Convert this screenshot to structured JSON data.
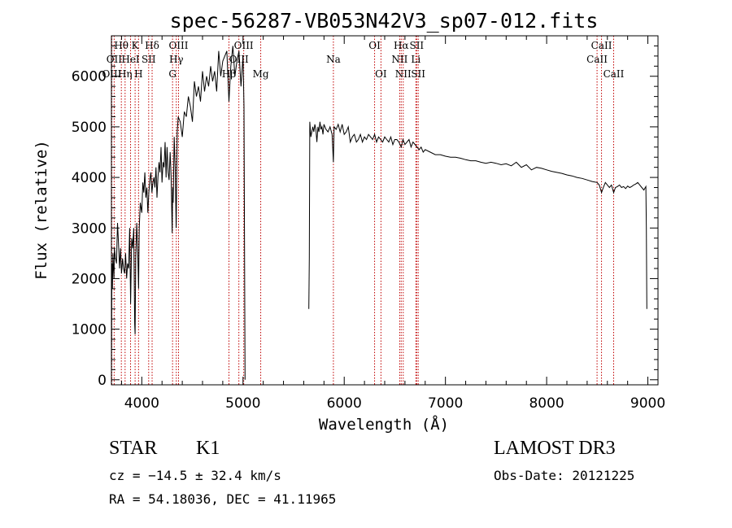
{
  "chart_data": {
    "type": "line",
    "title": "spec-56287-VB053N42V3_sp07-012.fits",
    "xlabel": "Wavelength (Å)",
    "ylabel": "Flux (relative)",
    "xlim": [
      3700,
      9100
    ],
    "ylim": [
      -100,
      6800
    ],
    "xticks": [
      4000,
      5000,
      6000,
      7000,
      8000,
      9000
    ],
    "yticks": [
      0,
      1000,
      2000,
      3000,
      4000,
      5000,
      6000
    ],
    "grid": false,
    "series": [
      {
        "segments": [
          {
            "x": [
              3700,
              3705,
              3710,
              3715,
              3720,
              3725,
              3730,
              3740,
              3750,
              3760,
              3770,
              3780,
              3790,
              3800,
              3810,
              3820,
              3830,
              3840,
              3850,
              3860,
              3870,
              3880,
              3890,
              3900,
              3910,
              3920,
              3930,
              3934,
              3940,
              3950,
              3960,
              3968,
              3975,
              3985,
              4000,
              4010,
              4020,
              4030,
              4040,
              4050,
              4060,
              4070,
              4080,
              4090,
              4100,
              4110,
              4120,
              4130,
              4140,
              4150,
              4160,
              4170,
              4180,
              4190,
              4200,
              4210,
              4220,
              4230,
              4240,
              4250,
              4260,
              4270,
              4280,
              4290,
              4300,
              4305,
              4310,
              4320,
              4330,
              4340,
              4350,
              4360,
              4380,
              4400,
              4420,
              4440,
              4460,
              4480,
              4500,
              4520,
              4540,
              4560,
              4580,
              4600,
              4620,
              4640,
              4660,
              4680,
              4700,
              4720,
              4740,
              4760,
              4780,
              4800,
              4820,
              4840,
              4861,
              4880,
              4900,
              4920,
              4940,
              4960,
              4980,
              5000,
              5010,
              5020
            ],
            "y": [
              0,
              2300,
              1800,
              2500,
              2200,
              2000,
              2600,
              2400,
              2300,
              3100,
              2700,
              2200,
              2600,
              2100,
              2400,
              2200,
              2100,
              2500,
              2000,
              2300,
              2200,
              3000,
              1500,
              2800,
              2600,
              3000,
              1100,
              900,
              2400,
              3100,
              2500,
              1800,
              3000,
              3500,
              3300,
              3900,
              3700,
              4100,
              3600,
              3800,
              3300,
              3700,
              3950,
              4100,
              3700,
              3900,
              4000,
              3800,
              4200,
              3600,
              4000,
              4300,
              4100,
              4600,
              3900,
              4300,
              4200,
              4700,
              4000,
              4600,
              4100,
              3950,
              4500,
              4000,
              2900,
              3800,
              3500,
              4800,
              4200,
              3000,
              4900,
              5200,
              5100,
              4800,
              5300,
              5200,
              5600,
              5400,
              5100,
              5900,
              5600,
              5800,
              5500,
              6100,
              5700,
              6000,
              5800,
              6200,
              5900,
              6100,
              5700,
              6500,
              6000,
              6300,
              6400,
              6500,
              5500,
              6200,
              6600,
              6000,
              6300,
              6500,
              5800,
              6400,
              5400,
              0
            ]
          },
          {
            "x": [
              5650,
              5655,
              5660,
              5670,
              5680,
              5690,
              5700,
              5710,
              5720,
              5730,
              5740,
              5750,
              5760,
              5770,
              5780,
              5790,
              5800,
              5820,
              5840,
              5860,
              5880,
              5893,
              5900,
              5920,
              5940,
              5960,
              5980,
              6000,
              6020,
              6040,
              6060,
              6080,
              6100,
              6120,
              6140,
              6160,
              6180,
              6200,
              6220,
              6240,
              6260,
              6280,
              6300,
              6320,
              6340,
              6360,
              6380,
              6400,
              6420,
              6440,
              6460,
              6480,
              6500,
              6520,
              6540,
              6563,
              6580,
              6600,
              6620,
              6640,
              6660,
              6680,
              6700,
              6720,
              6740,
              6760,
              6780,
              6800,
              6850,
              6900,
              6950,
              7000,
              7050,
              7100,
              7150,
              7200,
              7250,
              7300,
              7350,
              7400,
              7450,
              7500,
              7550,
              7600,
              7650,
              7700,
              7750,
              7800,
              7850,
              7900,
              7950,
              8000,
              8050,
              8100,
              8150,
              8200,
              8250,
              8300,
              8350,
              8400,
              8450,
              8498,
              8520,
              8542,
              8560,
              8580,
              8600,
              8620,
              8640,
              8662,
              8680,
              8700,
              8720,
              8740,
              8760,
              8780,
              8800,
              8820,
              8840,
              8860,
              8880,
              8900,
              8920,
              8940,
              8960,
              8980,
              8985,
              8990
            ],
            "y": [
              1400,
              2400,
              5100,
              4800,
              4900,
              5000,
              4900,
              5050,
              4950,
              4700,
              5000,
              4900,
              5100,
              4950,
              5000,
              4850,
              5050,
              4950,
              4900,
              5000,
              4850,
              4300,
              5000,
              4950,
              5050,
              4900,
              5050,
              4850,
              4900,
              5000,
              4700,
              4800,
              4850,
              4700,
              4750,
              4850,
              4700,
              4800,
              4750,
              4850,
              4800,
              4750,
              4850,
              4700,
              4800,
              4750,
              4700,
              4800,
              4750,
              4700,
              4800,
              4650,
              4750,
              4750,
              4700,
              4600,
              4750,
              4650,
              4700,
              4750,
              4600,
              4700,
              4650,
              4600,
              4550,
              4600,
              4500,
              4550,
              4500,
              4450,
              4450,
              4420,
              4400,
              4400,
              4380,
              4350,
              4330,
              4330,
              4300,
              4280,
              4300,
              4280,
              4250,
              4270,
              4230,
              4300,
              4200,
              4250,
              4150,
              4200,
              4180,
              4150,
              4120,
              4100,
              4080,
              4050,
              4030,
              4000,
              3980,
              3950,
              3920,
              3900,
              3850,
              3700,
              3800,
              3900,
              3850,
              3800,
              3850,
              3700,
              3800,
              3820,
              3850,
              3800,
              3820,
              3780,
              3830,
              3800,
              3820,
              3850,
              3870,
              3900,
              3850,
              3800,
              3750,
              3820,
              3000,
              1400
            ]
          }
        ]
      }
    ],
    "spectral_lines": [
      {
        "label": "Hθ",
        "wave": 3798,
        "row": 0
      },
      {
        "label": "OII",
        "wave": 3727,
        "row": 1
      },
      {
        "label": "OIII",
        "wave": 3704,
        "row": 2
      },
      {
        "label": "Hη",
        "wave": 3835,
        "row": 2
      },
      {
        "label": "HeI",
        "wave": 3889,
        "row": 1
      },
      {
        "label": "K",
        "wave": 3934,
        "row": 0
      },
      {
        "label": "H",
        "wave": 3968,
        "row": 2
      },
      {
        "label": "SII",
        "wave": 4068,
        "row": 1
      },
      {
        "label": "Hδ",
        "wave": 4102,
        "row": 0
      },
      {
        "label": "G",
        "wave": 4304,
        "row": 2
      },
      {
        "label": "Hγ",
        "wave": 4341,
        "row": 1
      },
      {
        "label": "OIII",
        "wave": 4363,
        "row": 0
      },
      {
        "label": "Hβ",
        "wave": 4861,
        "row": 2
      },
      {
        "label": "OIII",
        "wave": 5007,
        "row": 0
      },
      {
        "label": "OIII",
        "wave": 4959,
        "row": 1
      },
      {
        "label": "Mg",
        "wave": 5175,
        "row": 2
      },
      {
        "label": "Na",
        "wave": 5893,
        "row": 1
      },
      {
        "label": "OI",
        "wave": 6300,
        "row": 0
      },
      {
        "label": "OI",
        "wave": 6363,
        "row": 2
      },
      {
        "label": "Hα",
        "wave": 6563,
        "row": 0
      },
      {
        "label": "NII",
        "wave": 6548,
        "row": 1
      },
      {
        "label": "NII",
        "wave": 6583,
        "row": 2
      },
      {
        "label": "SII",
        "wave": 6716,
        "row": 0
      },
      {
        "label": "Li",
        "wave": 6708,
        "row": 1
      },
      {
        "label": "SII",
        "wave": 6731,
        "row": 2
      },
      {
        "label": "CaII",
        "wave": 8542,
        "row": 0
      },
      {
        "label": "CaII",
        "wave": 8498,
        "row": 1
      },
      {
        "label": "CaII",
        "wave": 8662,
        "row": 2
      }
    ]
  },
  "info": {
    "class": "STAR",
    "subclass": "K1",
    "survey": "LAMOST DR3",
    "cz": "cz = −14.5 ± 32.4 km/s",
    "obs_date": "Obs-Date: 20121225",
    "coords": "RA =  54.18036, DEC =  41.11965"
  },
  "colors": {
    "spectrum": "#000000",
    "lines": "#c00000"
  }
}
